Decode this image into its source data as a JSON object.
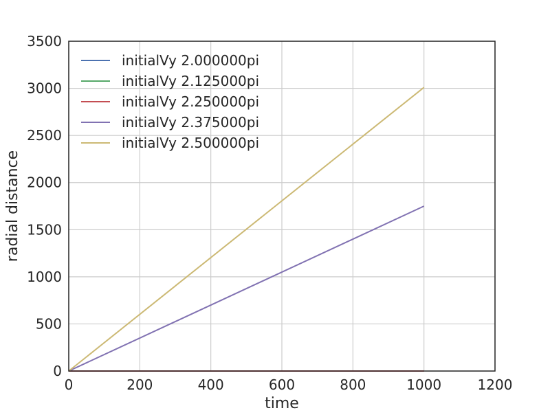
{
  "chart_data": {
    "type": "line",
    "title": "",
    "xlabel": "time",
    "ylabel": "radial distance",
    "xlim": [
      0,
      1200
    ],
    "ylim": [
      0,
      3500
    ],
    "xticks": [
      0,
      200,
      400,
      600,
      800,
      1000,
      1200
    ],
    "yticks": [
      0,
      500,
      1000,
      1500,
      2000,
      2500,
      3000,
      3500
    ],
    "grid": true,
    "legend_position": "top-left",
    "series": [
      {
        "name": "initialVy 2.000000pi",
        "color": "#4c72b0",
        "x": [
          0,
          1000
        ],
        "y": [
          0,
          0
        ]
      },
      {
        "name": "initialVy 2.125000pi",
        "color": "#55a868",
        "x": [
          0,
          1000
        ],
        "y": [
          0,
          0
        ]
      },
      {
        "name": "initialVy 2.250000pi",
        "color": "#c44e52",
        "x": [
          0,
          1000
        ],
        "y": [
          0,
          0
        ]
      },
      {
        "name": "initialVy 2.375000pi",
        "color": "#8172b2",
        "x": [
          0,
          1000
        ],
        "y": [
          0,
          1750
        ]
      },
      {
        "name": "initialVy 2.500000pi",
        "color": "#ccb974",
        "x": [
          0,
          1000
        ],
        "y": [
          0,
          3010
        ]
      }
    ]
  }
}
